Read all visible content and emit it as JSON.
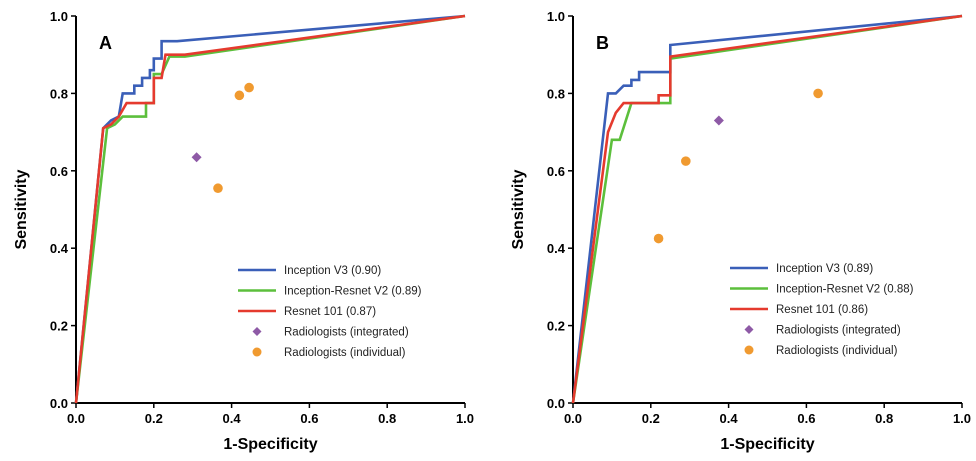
{
  "chart_data": [
    {
      "type": "line",
      "panel_label": "A",
      "xlabel": "1-Specificity",
      "ylabel": "Sensitivity",
      "xlim": [
        0,
        1
      ],
      "ylim": [
        0,
        1
      ],
      "xticks": [
        "0.0",
        "0.2",
        "0.4",
        "0.6",
        "0.8",
        "1.0"
      ],
      "yticks": [
        "0.0",
        "0.2",
        "0.4",
        "0.6",
        "0.8",
        "1.0"
      ],
      "legend_placement": "bottom-right",
      "series": [
        {
          "name": "Inception V3 (0.90)",
          "color": "#3a5fb8",
          "points": [
            [
              0,
              0
            ],
            [
              0.07,
              0.71
            ],
            [
              0.09,
              0.73
            ],
            [
              0.11,
              0.74
            ],
            [
              0.12,
              0.8
            ],
            [
              0.15,
              0.8
            ],
            [
              0.15,
              0.82
            ],
            [
              0.17,
              0.82
            ],
            [
              0.17,
              0.84
            ],
            [
              0.19,
              0.84
            ],
            [
              0.19,
              0.86
            ],
            [
              0.2,
              0.86
            ],
            [
              0.2,
              0.89
            ],
            [
              0.22,
              0.89
            ],
            [
              0.22,
              0.935
            ],
            [
              0.26,
              0.935
            ],
            [
              1,
              1
            ]
          ]
        },
        {
          "name": "Inception-Resnet V2 (0.89)",
          "color": "#5cbf3c",
          "points": [
            [
              0,
              0
            ],
            [
              0.08,
              0.71
            ],
            [
              0.1,
              0.72
            ],
            [
              0.12,
              0.74
            ],
            [
              0.18,
              0.74
            ],
            [
              0.18,
              0.775
            ],
            [
              0.2,
              0.775
            ],
            [
              0.2,
              0.85
            ],
            [
              0.22,
              0.85
            ],
            [
              0.24,
              0.895
            ],
            [
              0.28,
              0.895
            ],
            [
              1,
              1
            ]
          ]
        },
        {
          "name": "Resnet 101 (0.87)",
          "color": "#e53a2e",
          "points": [
            [
              0,
              0
            ],
            [
              0.07,
              0.71
            ],
            [
              0.09,
              0.72
            ],
            [
              0.11,
              0.74
            ],
            [
              0.13,
              0.775
            ],
            [
              0.2,
              0.775
            ],
            [
              0.2,
              0.84
            ],
            [
              0.22,
              0.84
            ],
            [
              0.23,
              0.9
            ],
            [
              0.28,
              0.9
            ],
            [
              1,
              1
            ]
          ]
        }
      ],
      "points": [
        {
          "name": "Radiologists (integrated)",
          "color": "#8e5aa6",
          "marker": "diamond",
          "values": [
            [
              0.31,
              0.635
            ]
          ]
        },
        {
          "name": "Radiologists (individual)",
          "color": "#f09a30",
          "marker": "circle",
          "values": [
            [
              0.365,
              0.555
            ],
            [
              0.42,
              0.795
            ],
            [
              0.445,
              0.815
            ]
          ]
        }
      ]
    },
    {
      "type": "line",
      "panel_label": "B",
      "xlabel": "1-Specificity",
      "ylabel": "Sensitivity",
      "xlim": [
        0,
        1
      ],
      "ylim": [
        0,
        1
      ],
      "xticks": [
        "0.0",
        "0.2",
        "0.4",
        "0.6",
        "0.8",
        "1.0"
      ],
      "yticks": [
        "0.0",
        "0.2",
        "0.4",
        "0.6",
        "0.8",
        "1.0"
      ],
      "legend_placement": "bottom-right",
      "series": [
        {
          "name": "Inception V3 (0.89)",
          "color": "#3a5fb8",
          "points": [
            [
              0,
              0
            ],
            [
              0.09,
              0.8
            ],
            [
              0.11,
              0.8
            ],
            [
              0.13,
              0.82
            ],
            [
              0.15,
              0.82
            ],
            [
              0.15,
              0.835
            ],
            [
              0.17,
              0.835
            ],
            [
              0.17,
              0.855
            ],
            [
              0.25,
              0.855
            ],
            [
              0.25,
              0.925
            ],
            [
              1,
              1
            ]
          ]
        },
        {
          "name": "Inception-Resnet V2 (0.88)",
          "color": "#5cbf3c",
          "points": [
            [
              0,
              0
            ],
            [
              0.1,
              0.68
            ],
            [
              0.12,
              0.68
            ],
            [
              0.15,
              0.775
            ],
            [
              0.25,
              0.775
            ],
            [
              0.25,
              0.89
            ],
            [
              1,
              1
            ]
          ]
        },
        {
          "name": "Resnet 101 (0.86)",
          "color": "#e53a2e",
          "points": [
            [
              0,
              0
            ],
            [
              0.09,
              0.7
            ],
            [
              0.11,
              0.75
            ],
            [
              0.13,
              0.775
            ],
            [
              0.22,
              0.775
            ],
            [
              0.22,
              0.795
            ],
            [
              0.25,
              0.795
            ],
            [
              0.25,
              0.895
            ],
            [
              1,
              1
            ]
          ]
        }
      ],
      "points": [
        {
          "name": "Radiologists (integrated)",
          "color": "#8e5aa6",
          "marker": "diamond",
          "values": [
            [
              0.375,
              0.73
            ]
          ]
        },
        {
          "name": "Radiologists (individual)",
          "color": "#f09a30",
          "marker": "circle",
          "values": [
            [
              0.22,
              0.425
            ],
            [
              0.29,
              0.625
            ],
            [
              0.63,
              0.8
            ]
          ]
        }
      ]
    }
  ]
}
